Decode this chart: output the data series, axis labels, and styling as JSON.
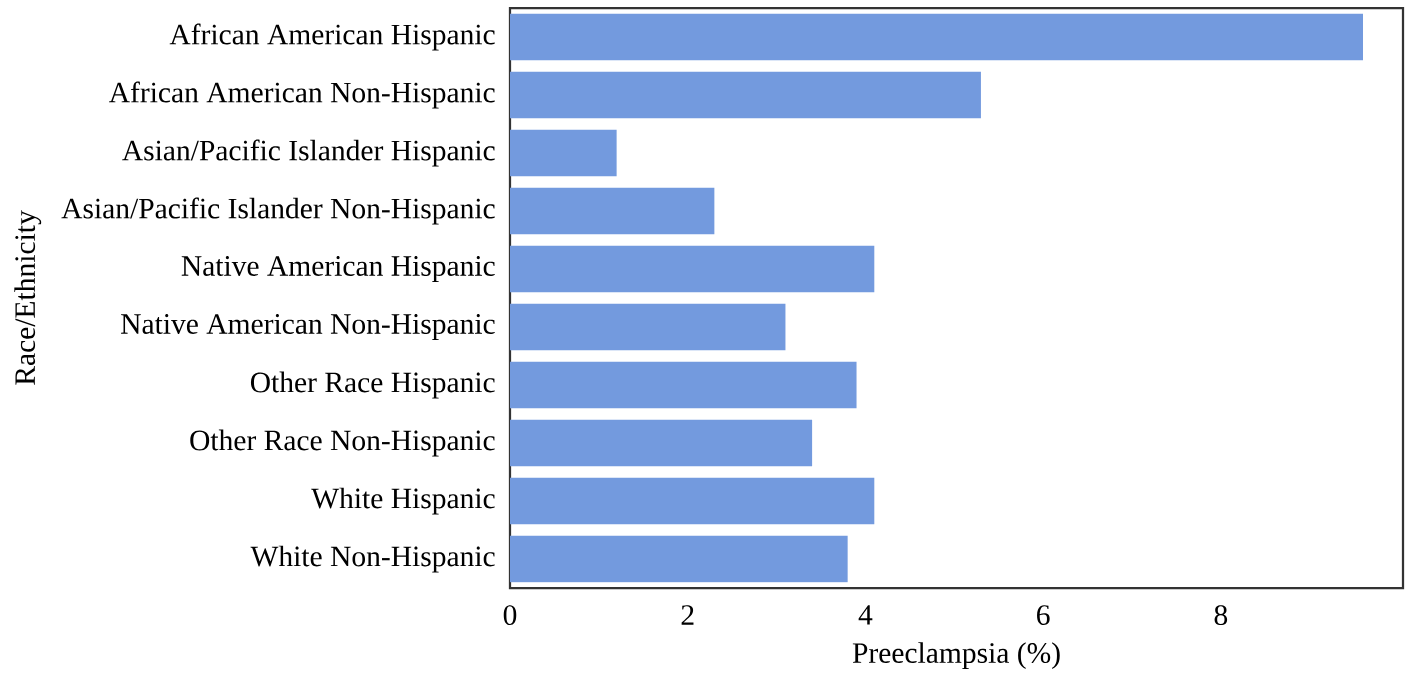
{
  "chart_data": {
    "type": "bar",
    "orientation": "horizontal",
    "categories": [
      "African American Hispanic",
      "African American Non-Hispanic",
      "Asian/Pacific Islander Hispanic",
      "Asian/Pacific Islander Non-Hispanic",
      "Native American Hispanic",
      "Native American Non-Hispanic",
      "Other Race Hispanic",
      "Other Race Non-Hispanic",
      "White Hispanic",
      "White Non-Hispanic"
    ],
    "values": [
      9.6,
      5.3,
      1.2,
      2.3,
      4.1,
      3.1,
      3.9,
      3.4,
      4.1,
      3.8
    ],
    "color": "#739ade",
    "xlabel": "Preeclampsia (%)",
    "ylabel": "Race/Ethnicity",
    "xlim": [
      0,
      10.05
    ],
    "xticks": [
      0,
      2,
      4,
      6,
      8
    ],
    "grid": false
  }
}
